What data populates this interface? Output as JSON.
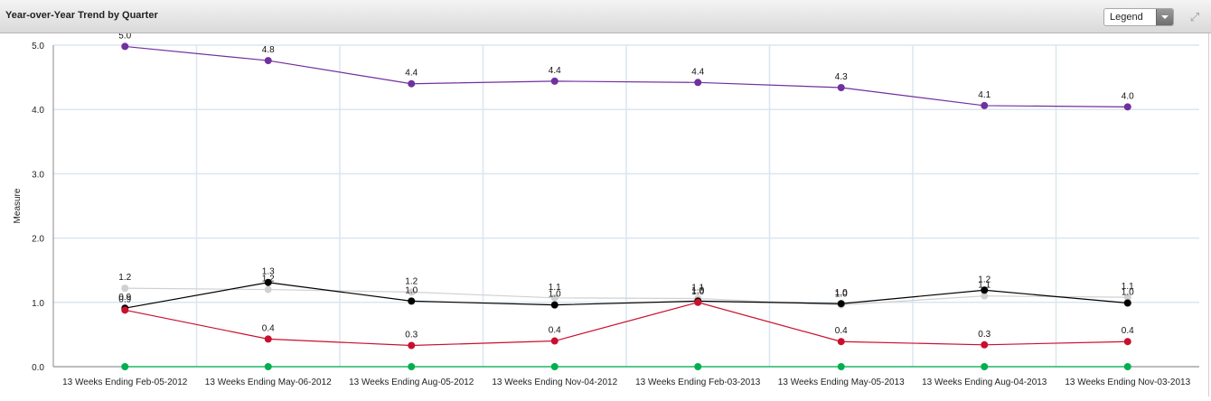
{
  "header": {
    "title": "Year-over-Year Trend by Quarter",
    "legend_label": "Legend",
    "expand_icon": "expand-icon"
  },
  "chart_data": {
    "type": "line",
    "title": "Year-over-Year Trend by Quarter",
    "xlabel": "",
    "ylabel": "Measure",
    "ylim": [
      0,
      5
    ],
    "yticks": [
      "0.0",
      "1.0",
      "2.0",
      "3.0",
      "4.0",
      "5.0"
    ],
    "grid": true,
    "categories": [
      "13 Weeks Ending Feb-05-2012",
      "13 Weeks Ending May-06-2012",
      "13 Weeks Ending Aug-05-2012",
      "13 Weeks Ending Nov-04-2012",
      "13 Weeks Ending Feb-03-2013",
      "13 Weeks Ending May-05-2013",
      "13 Weeks Ending Aug-04-2013",
      "13 Weeks Ending Nov-03-2013"
    ],
    "series": [
      {
        "color": "#7030a0",
        "values": [
          4.98,
          4.76,
          4.4,
          4.44,
          4.42,
          4.34,
          4.06,
          4.04
        ],
        "labels": [
          "5.0",
          "4.8",
          "4.4",
          "4.4",
          "4.4",
          "4.3",
          "4.1",
          "4.0"
        ]
      },
      {
        "color": "#d0d0d0",
        "values": [
          1.22,
          1.2,
          1.16,
          1.07,
          1.06,
          0.96,
          1.1,
          1.08
        ],
        "labels": [
          "1.2",
          "1.2",
          "1.2",
          "1.1",
          "1.1",
          "1.0",
          "1.1",
          "1.1"
        ]
      },
      {
        "color": "#000000",
        "values": [
          0.91,
          1.31,
          1.02,
          0.96,
          1.02,
          0.98,
          1.19,
          0.99
        ],
        "labels": [
          "0.9",
          "1.3",
          "1.0",
          "1.0",
          "1.0",
          "1.0",
          "1.2",
          "1.0"
        ]
      },
      {
        "color": "#c8102e",
        "values": [
          0.88,
          0.43,
          0.33,
          0.4,
          1.0,
          0.39,
          0.34,
          0.39
        ],
        "labels": [
          "0.9",
          "0.4",
          "0.3",
          "0.4",
          "1.0",
          "0.4",
          "0.3",
          "0.4"
        ]
      },
      {
        "color": "#00b050",
        "values": [
          0,
          0,
          0,
          0,
          0,
          0,
          0,
          0
        ],
        "labels": []
      }
    ]
  }
}
